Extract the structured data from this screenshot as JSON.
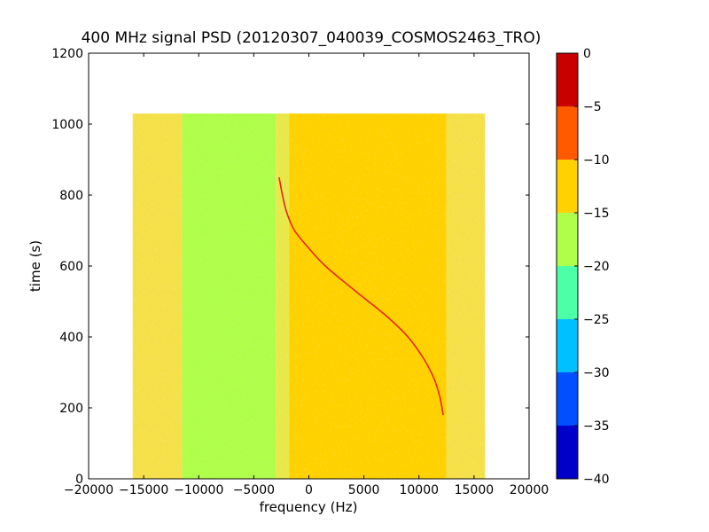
{
  "chart_data": {
    "type": "heatmap",
    "title": "400 MHz signal PSD (20120307_040039_COSMOS2463_TRO)",
    "xlabel": "frequency (Hz)",
    "ylabel": "time (s)",
    "xlim": [
      -20000,
      20000
    ],
    "ylim": [
      0,
      1200
    ],
    "xticks": [
      -20000,
      -15000,
      -10000,
      -5000,
      0,
      5000,
      10000,
      15000,
      20000
    ],
    "xtick_labels": [
      "−20000",
      "−15000",
      "−10000",
      "−5000",
      "0",
      "5000",
      "10000",
      "15000",
      "20000"
    ],
    "yticks": [
      0,
      200,
      400,
      600,
      800,
      1000,
      1200
    ],
    "ytick_labels": [
      "0",
      "200",
      "400",
      "600",
      "800",
      "1000",
      "1200"
    ],
    "data_extent": {
      "x": [
        -16000,
        16000
      ],
      "y": [
        0,
        1030
      ]
    },
    "regions": [
      {
        "x0": -16000,
        "x1": -11500,
        "level": -12.5,
        "color": "#f5e04a"
      },
      {
        "x0": -11500,
        "x1": -3000,
        "level": -17.5,
        "color": "#aefe4a"
      },
      {
        "x0": -3000,
        "x1": -1800,
        "level": -13.5,
        "color": "#e8e84a"
      },
      {
        "x0": -1800,
        "x1": 12500,
        "level": -12.5,
        "color": "#ffd100"
      },
      {
        "x0": 12500,
        "x1": 16000,
        "level": -13.5,
        "color": "#f5e04a"
      }
    ],
    "signal_trace": {
      "level": -3,
      "color": "#e8231a",
      "points": [
        {
          "x": -2700,
          "y": 850
        },
        {
          "x": -2400,
          "y": 800
        },
        {
          "x": -2000,
          "y": 750
        },
        {
          "x": -1300,
          "y": 700
        },
        {
          "x": 0,
          "y": 650
        },
        {
          "x": 1500,
          "y": 600
        },
        {
          "x": 4000,
          "y": 535
        },
        {
          "x": 7000,
          "y": 460
        },
        {
          "x": 9000,
          "y": 400
        },
        {
          "x": 10500,
          "y": 335
        },
        {
          "x": 11400,
          "y": 280
        },
        {
          "x": 11900,
          "y": 230
        },
        {
          "x": 12200,
          "y": 180
        }
      ]
    },
    "colorbar": {
      "range": [
        -40,
        0
      ],
      "ticks": [
        0,
        -5,
        -10,
        -15,
        -20,
        -25,
        -30,
        -35,
        -40
      ],
      "tick_labels": [
        "0",
        "−5",
        "−10",
        "−15",
        "−20",
        "−25",
        "−30",
        "−35",
        "−40"
      ],
      "levels": [
        {
          "from": -40,
          "to": -35,
          "color": "#0000c8"
        },
        {
          "from": -35,
          "to": -30,
          "color": "#0050ff"
        },
        {
          "from": -30,
          "to": -25,
          "color": "#00c0ff"
        },
        {
          "from": -25,
          "to": -20,
          "color": "#4dffa6"
        },
        {
          "from": -20,
          "to": -15,
          "color": "#aefe4a"
        },
        {
          "from": -15,
          "to": -10,
          "color": "#ffd100"
        },
        {
          "from": -10,
          "to": -5,
          "color": "#ff5a00"
        },
        {
          "from": -5,
          "to": 0,
          "color": "#c80000"
        }
      ]
    }
  }
}
